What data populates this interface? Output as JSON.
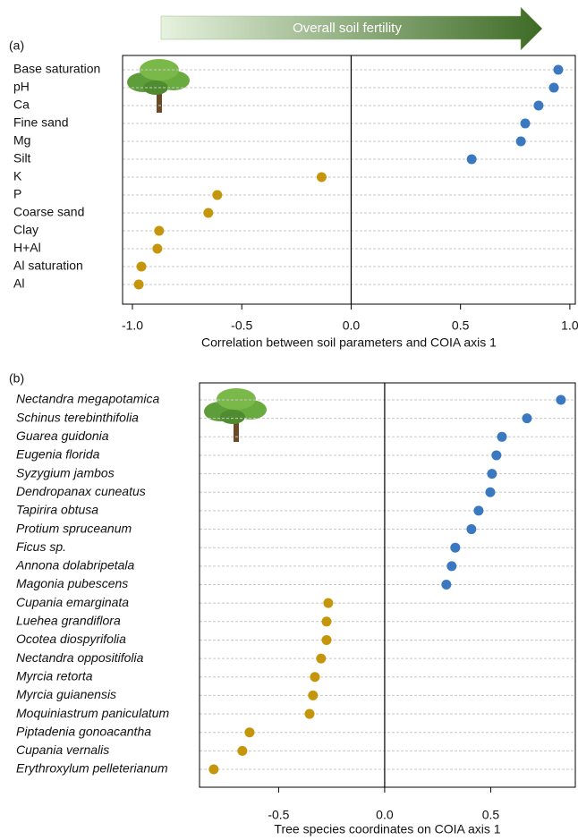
{
  "chart_data": [
    {
      "type": "dot",
      "banner": "Overall soil fertility",
      "panel_label": "(a)",
      "xlabel": "Correlation between soil parameters and COIA axis 1",
      "categories": [
        "Base saturation",
        "pH",
        "Ca",
        "Fine sand",
        "Mg",
        "Silt",
        "K",
        "P",
        "Coarse sand",
        "Clay",
        "H+Al",
        "Al saturation",
        "Al"
      ],
      "values": [
        0.947,
        0.927,
        0.857,
        0.796,
        0.776,
        0.551,
        -0.135,
        -0.612,
        -0.653,
        -0.878,
        -0.886,
        -0.959,
        -0.971
      ],
      "colors": [
        "#3a78c0",
        "#3a78c0",
        "#3a78c0",
        "#3a78c0",
        "#3a78c0",
        "#3a78c0",
        "#c5960c",
        "#c5960c",
        "#c5960c",
        "#c5960c",
        "#c5960c",
        "#c5960c",
        "#c5960c"
      ],
      "italic_labels": false,
      "xlim": [
        -1.045,
        1.025
      ],
      "xticks": [
        {
          "value": -1,
          "label": "-1.0"
        },
        {
          "value": -0.5,
          "label": "-0.5"
        },
        {
          "value": 0,
          "label": "0.0"
        },
        {
          "value": 0.5,
          "label": "0.5"
        },
        {
          "value": 1,
          "label": "1.0"
        }
      ]
    },
    {
      "type": "dot",
      "panel_label": "(b)",
      "xlabel": "Tree species coordinates on COIA axis 1",
      "categories": [
        "Nectandra megapotamica",
        "Schinus terebinthifolia",
        "Guarea guidonia",
        "Eugenia florida",
        "Syzygium jambos",
        "Dendropanax cuneatus",
        "Tapirira obtusa",
        "Protium spruceanum",
        "Ficus sp.",
        "Annona dolabripetala",
        "Magonia pubescens",
        "Cupania emarginata",
        "Luehea grandiflora",
        "Ocotea diospyrifolia",
        "Nectandra oppositifolia",
        "Myrcia retorta",
        "Myrcia guianensis",
        "Moquiniastrum paniculatum",
        "Piptadenia gonoacantha",
        "Cupania vernalis",
        "Erythroxylum pelleterianum"
      ],
      "values": [
        0.831,
        0.671,
        0.553,
        0.527,
        0.506,
        0.498,
        0.443,
        0.409,
        0.333,
        0.316,
        0.291,
        -0.266,
        -0.274,
        -0.274,
        -0.3,
        -0.329,
        -0.338,
        -0.354,
        -0.637,
        -0.671,
        -0.806
      ],
      "colors": [
        "#3a78c0",
        "#3a78c0",
        "#3a78c0",
        "#3a78c0",
        "#3a78c0",
        "#3a78c0",
        "#3a78c0",
        "#3a78c0",
        "#3a78c0",
        "#3a78c0",
        "#3a78c0",
        "#c5960c",
        "#c5960c",
        "#c5960c",
        "#c5960c",
        "#c5960c",
        "#c5960c",
        "#c5960c",
        "#c5960c",
        "#c5960c",
        "#c5960c"
      ],
      "italic_labels": true,
      "xlim": [
        -0.873,
        0.899
      ],
      "xticks": [
        {
          "value": -0.5,
          "label": "-0.5"
        },
        {
          "value": 0,
          "label": "0.0"
        },
        {
          "value": 0.5,
          "label": "0.5"
        }
      ]
    }
  ]
}
